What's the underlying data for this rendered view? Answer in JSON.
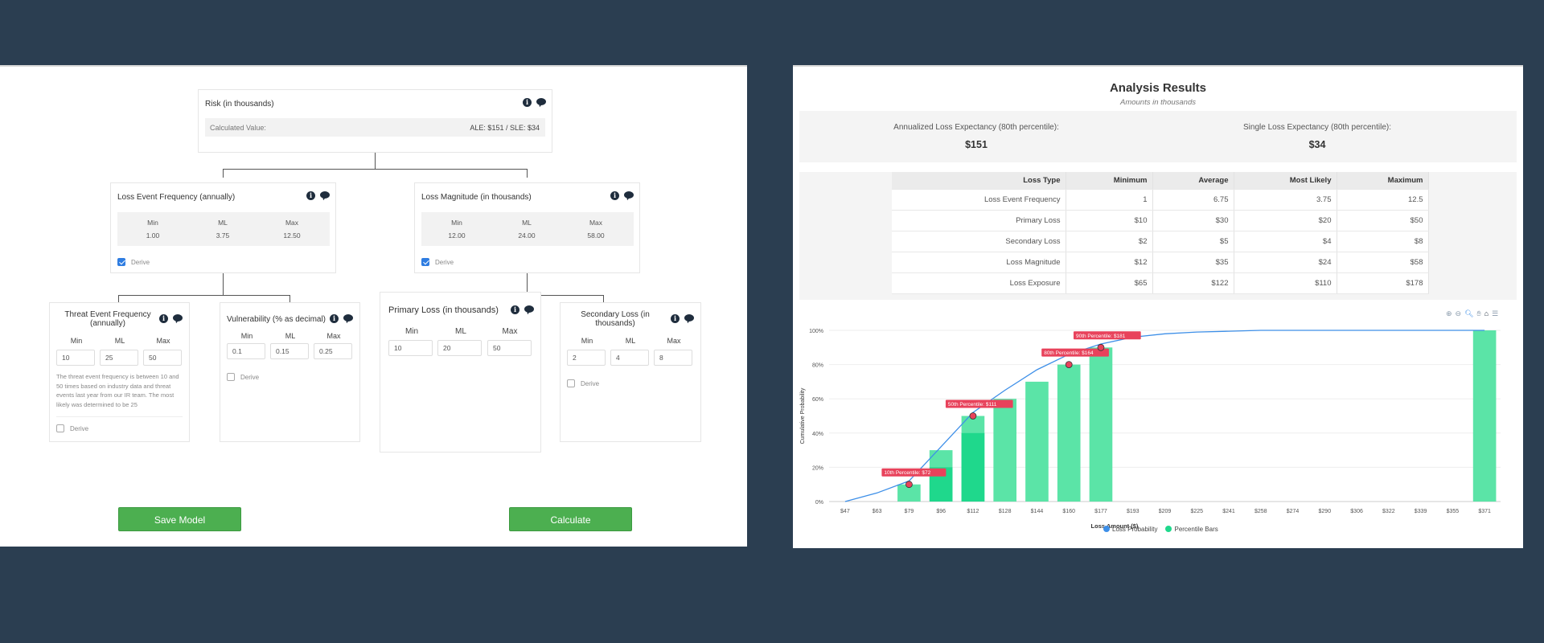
{
  "model": {
    "risk": {
      "title": "Risk (in thousands)",
      "calc_label": "Calculated Value:",
      "calc_value": "ALE: $151 / SLE: $34"
    },
    "lef": {
      "title": "Loss Event Frequency (annually)",
      "headers": [
        "Min",
        "ML",
        "Max"
      ],
      "values": [
        "1.00",
        "3.75",
        "12.50"
      ],
      "derive_label": "Derive",
      "derive_checked": true
    },
    "lm": {
      "title": "Loss Magnitude (in thousands)",
      "headers": [
        "Min",
        "ML",
        "Max"
      ],
      "values": [
        "12.00",
        "24.00",
        "58.00"
      ],
      "derive_label": "Derive",
      "derive_checked": true
    },
    "tef": {
      "title": "Threat Event Frequency (annually)",
      "headers": [
        "Min",
        "ML",
        "Max"
      ],
      "values": [
        "10",
        "25",
        "50"
      ],
      "description": "The threat event frequency is between 10 and 50 times based on industry data and threat events last year from our IR team. The most likely was determined to be 25",
      "derive_label": "Derive"
    },
    "vuln": {
      "title": "Vulnerability (% as decimal)",
      "headers": [
        "Min",
        "ML",
        "Max"
      ],
      "values": [
        "0.1",
        "0.15",
        "0.25"
      ],
      "derive_label": "Derive"
    },
    "pl": {
      "title": "Primary Loss (in thousands)",
      "headers": [
        "Min",
        "ML",
        "Max"
      ],
      "values": [
        "10",
        "20",
        "50"
      ]
    },
    "sl": {
      "title": "Secondary Loss (in thousands)",
      "headers": [
        "Min",
        "ML",
        "Max"
      ],
      "values": [
        "2",
        "4",
        "8"
      ],
      "derive_label": "Derive"
    },
    "buttons": {
      "save": "Save Model",
      "calculate": "Calculate"
    }
  },
  "results": {
    "title": "Analysis Results",
    "subtitle": "Amounts in thousands",
    "ale_label": "Annualized Loss Expectancy (80th percentile):",
    "ale_value": "$151",
    "sle_label": "Single Loss Expectancy (80th percentile):",
    "sle_value": "$34",
    "table": {
      "headers": [
        "Loss Type",
        "Minimum",
        "Average",
        "Most Likely",
        "Maximum"
      ],
      "rows": [
        [
          "Loss Event Frequency",
          "1",
          "6.75",
          "3.75",
          "12.5"
        ],
        [
          "Primary Loss",
          "$10",
          "$30",
          "$20",
          "$50"
        ],
        [
          "Secondary Loss",
          "$2",
          "$5",
          "$4",
          "$8"
        ],
        [
          "Loss Magnitude",
          "$12",
          "$35",
          "$24",
          "$58"
        ],
        [
          "Loss Exposure",
          "$65",
          "$122",
          "$110",
          "$178"
        ]
      ]
    }
  },
  "chart_data": {
    "type": "bar",
    "xlabel": "Loss Amount ($)",
    "ylabel": "Cumulative Probability",
    "categories": [
      "$47",
      "$63",
      "$79",
      "$96",
      "$112",
      "$128",
      "$144",
      "$160",
      "$177",
      "$193",
      "$209",
      "$225",
      "$241",
      "$258",
      "$274",
      "$290",
      "$306",
      "$322",
      "$339",
      "$355",
      "$371"
    ],
    "ylim": [
      0,
      100
    ],
    "y_ticks": [
      "0%",
      "20%",
      "40%",
      "60%",
      "80%",
      "100%"
    ],
    "series": [
      {
        "name": "Percentile Bars",
        "values": [
          null,
          null,
          10,
          30,
          50,
          60,
          70,
          80,
          90,
          null,
          null,
          null,
          null,
          null,
          null,
          null,
          null,
          null,
          null,
          null,
          100
        ]
      },
      {
        "name": "Loss Probability",
        "values": [
          0,
          5,
          12,
          32,
          52,
          65,
          77,
          86,
          92,
          96,
          98,
          99,
          99.5,
          100,
          100,
          100,
          100,
          100,
          100,
          100,
          100
        ]
      }
    ],
    "inner_bars": [
      null,
      null,
      null,
      20,
      40,
      null,
      null,
      null,
      null,
      null,
      null,
      null,
      null,
      null,
      null,
      null,
      null,
      null,
      null,
      null,
      null
    ],
    "annotations": [
      {
        "label": "10th Percentile: $72",
        "x_index": 2,
        "y": 10
      },
      {
        "label": "50th Percentile: $111",
        "x_index": 4,
        "y": 50
      },
      {
        "label": "80th Percentile: $164",
        "x_index": 7,
        "y": 80
      },
      {
        "label": "90th Percentile: $181",
        "x_index": 8,
        "y": 90
      }
    ],
    "legend": [
      "Loss Probability",
      "Percentile Bars"
    ],
    "colors": {
      "line": "#3d8fe8",
      "bar": "#52e3a2",
      "bar_inner": "#1fd88c",
      "annotation": "#e8425b"
    },
    "grid": true
  }
}
